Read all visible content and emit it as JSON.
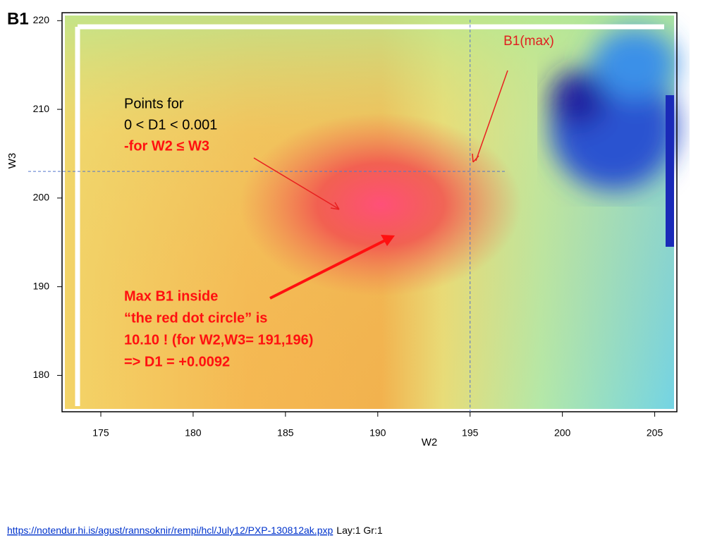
{
  "chart_data": {
    "type": "heatmap",
    "title": "B1",
    "xlabel": "W2",
    "ylabel": "W3",
    "xlim": [
      172.9,
      206.2
    ],
    "ylim": [
      175.9,
      220.9
    ],
    "xticks": [
      175,
      180,
      185,
      190,
      195,
      200,
      205
    ],
    "yticks": [
      180,
      190,
      200,
      210,
      220
    ],
    "vline": 195,
    "hline": 203,
    "annotations": {
      "max_label": "B1(max)",
      "points_lines": [
        "Points for",
        "0 < D1 < 0.001"
      ],
      "points_condition": "-for W2 ≤ W3",
      "max_lines": [
        "Max B1 inside",
        "“the red dot circle” is",
        "10.10 ! (for W2,W3= 191,196)",
        "=> D1 = +0.0092"
      ]
    }
  },
  "footer": {
    "link": "https://notendur.hi.is/agust/rannsoknir/rempi/hcl/July12/PXP-130812ak.pxp",
    "note": "Lay:1 Gr:1"
  }
}
